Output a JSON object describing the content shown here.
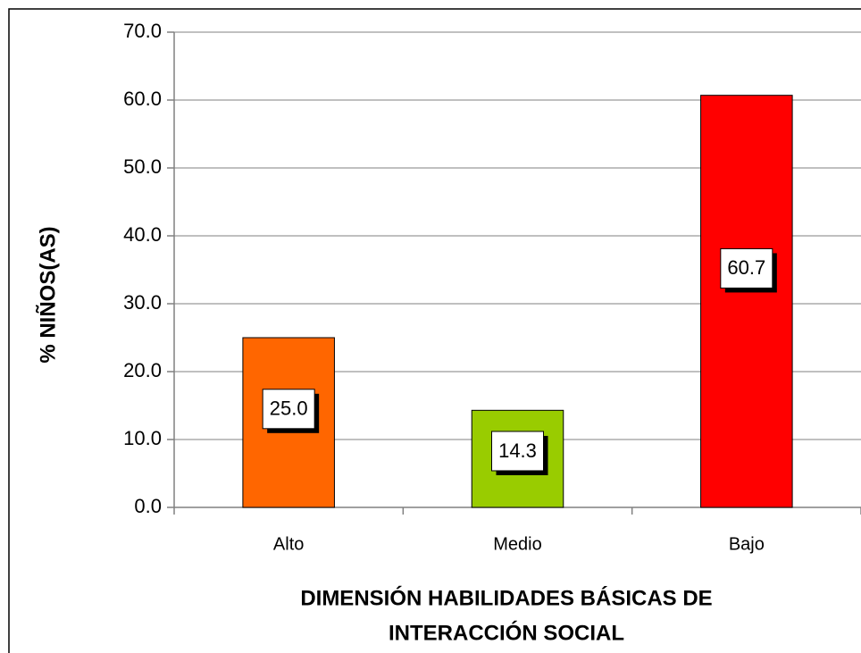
{
  "chart_data": {
    "type": "bar",
    "categories": [
      "Alto",
      "Medio",
      "Bajo"
    ],
    "values": [
      25.0,
      14.3,
      60.7
    ],
    "value_labels": [
      "25.0",
      "14.3",
      "60.7"
    ],
    "colors": [
      "#ff6600",
      "#99cc00",
      "#ff0000"
    ],
    "ylabel": "% NIÑOS(AS)",
    "xlabel": [
      "DIMENSIÓN HABILIDADES BÁSICAS DE",
      "INTERACCIÓN SOCIAL"
    ],
    "ylim": [
      0,
      70
    ],
    "yticks": [
      {
        "value": 0,
        "label": "0.0"
      },
      {
        "value": 10,
        "label": "10.0"
      },
      {
        "value": 20,
        "label": "20.0"
      },
      {
        "value": 30,
        "label": "30.0"
      },
      {
        "value": 40,
        "label": "40.0"
      },
      {
        "value": 50,
        "label": "50.0"
      },
      {
        "value": 60,
        "label": "60.0"
      },
      {
        "value": 70,
        "label": "70.0"
      }
    ],
    "grid": true
  }
}
